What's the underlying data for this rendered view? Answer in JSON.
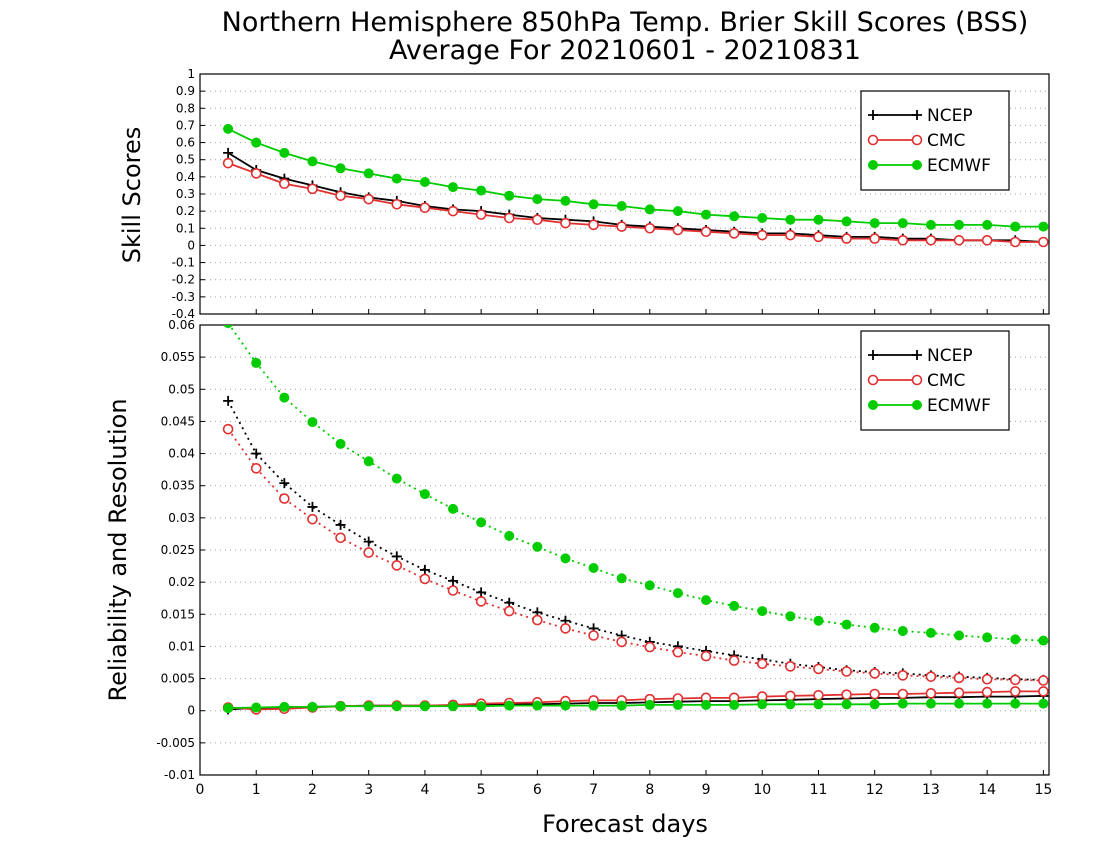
{
  "chart_data": [
    {
      "type": "line",
      "panel": "top",
      "title": "Northern Hemisphere 850hPa Temp. Brier Skill Scores (BSS)",
      "subtitle": "Average For 20210601 - 20210831",
      "ylabel": "Skill Scores",
      "xlabel": "",
      "xlim": [
        0,
        15.1
      ],
      "ylim": [
        -0.4,
        1.0
      ],
      "yticks": [
        -0.4,
        -0.3,
        -0.2,
        -0.1,
        0,
        0.1,
        0.2,
        0.3,
        0.4,
        0.5,
        0.6,
        0.7,
        0.8,
        0.9,
        1
      ],
      "ytick_labels": [
        "-0.4",
        "-0.3",
        "-0.2",
        "-0.1",
        "0",
        "0.1",
        "0.2",
        "0.3",
        "0.4",
        "0.5",
        "0.6",
        "0.7",
        "0.8",
        "0.9",
        "1"
      ],
      "grid": true,
      "legend": "top-right",
      "x": [
        0.5,
        1,
        1.5,
        2,
        2.5,
        3,
        3.5,
        4,
        4.5,
        5,
        5.5,
        6,
        6.5,
        7,
        7.5,
        8,
        8.5,
        9,
        9.5,
        10,
        10.5,
        11,
        11.5,
        12,
        12.5,
        13,
        13.5,
        14,
        14.5,
        15
      ],
      "series": [
        {
          "name": "NCEP",
          "color": "#000000",
          "marker": "plus",
          "line": "solid",
          "values": [
            0.54,
            0.44,
            0.39,
            0.35,
            0.31,
            0.28,
            0.26,
            0.23,
            0.21,
            0.2,
            0.18,
            0.16,
            0.15,
            0.14,
            0.12,
            0.11,
            0.1,
            0.09,
            0.08,
            0.07,
            0.07,
            0.06,
            0.05,
            0.05,
            0.04,
            0.04,
            0.03,
            0.03,
            0.03,
            0.02
          ]
        },
        {
          "name": "CMC",
          "color": "#e03030",
          "marker": "open-circle",
          "line": "solid",
          "values": [
            0.48,
            0.42,
            0.36,
            0.33,
            0.29,
            0.27,
            0.24,
            0.22,
            0.2,
            0.18,
            0.16,
            0.15,
            0.13,
            0.12,
            0.11,
            0.1,
            0.09,
            0.08,
            0.07,
            0.06,
            0.06,
            0.05,
            0.04,
            0.04,
            0.03,
            0.03,
            0.03,
            0.03,
            0.02,
            0.02
          ]
        },
        {
          "name": "ECMWF",
          "color": "#00cc00",
          "marker": "filled-circle",
          "line": "solid",
          "values": [
            0.68,
            0.6,
            0.54,
            0.49,
            0.45,
            0.42,
            0.39,
            0.37,
            0.34,
            0.32,
            0.29,
            0.27,
            0.26,
            0.24,
            0.23,
            0.21,
            0.2,
            0.18,
            0.17,
            0.16,
            0.15,
            0.15,
            0.14,
            0.13,
            0.13,
            0.12,
            0.12,
            0.12,
            0.11,
            0.11
          ]
        }
      ]
    },
    {
      "type": "line",
      "panel": "bottom",
      "ylabel": "Reliability and Resolution",
      "xlabel": "Forecast days",
      "xlim": [
        0,
        15.1
      ],
      "ylim": [
        -0.01,
        0.06
      ],
      "xticks": [
        0,
        1,
        2,
        3,
        4,
        5,
        6,
        7,
        8,
        9,
        10,
        11,
        12,
        13,
        14,
        15
      ],
      "xtick_labels": [
        "0",
        "1",
        "2",
        "3",
        "4",
        "5",
        "6",
        "7",
        "8",
        "9",
        "10",
        "11",
        "12",
        "13",
        "14",
        "15"
      ],
      "yticks": [
        -0.01,
        -0.005,
        0,
        0.005,
        0.01,
        0.015,
        0.02,
        0.025,
        0.03,
        0.035,
        0.04,
        0.045,
        0.05,
        0.055,
        0.06
      ],
      "ytick_labels": [
        "-0.01",
        "-0.005",
        "0",
        "0.005",
        "0.01",
        "0.015",
        "0.02",
        "0.025",
        "0.03",
        "0.035",
        "0.04",
        "0.045",
        "0.05",
        "0.055",
        "0.06"
      ],
      "grid": true,
      "legend": "top-right",
      "x": [
        0.5,
        1,
        1.5,
        2,
        2.5,
        3,
        3.5,
        4,
        4.5,
        5,
        5.5,
        6,
        6.5,
        7,
        7.5,
        8,
        8.5,
        9,
        9.5,
        10,
        10.5,
        11,
        11.5,
        12,
        12.5,
        13,
        13.5,
        14,
        14.5,
        15
      ],
      "series": [
        {
          "name": "NCEP",
          "role": "resolution",
          "color": "#000000",
          "marker": "plus",
          "line": "dotted",
          "values": [
            0.0482,
            0.04,
            0.0354,
            0.0317,
            0.0289,
            0.0263,
            0.024,
            0.0219,
            0.0202,
            0.0184,
            0.0168,
            0.0153,
            0.014,
            0.0128,
            0.0117,
            0.0107,
            0.01,
            0.0093,
            0.0086,
            0.008,
            0.0073,
            0.0068,
            0.0063,
            0.006,
            0.0058,
            0.0055,
            0.0053,
            0.0051,
            0.0049,
            0.0048
          ]
        },
        {
          "name": "CMC",
          "role": "resolution",
          "color": "#e03030",
          "marker": "open-circle",
          "line": "dotted",
          "values": [
            0.0438,
            0.0377,
            0.033,
            0.0298,
            0.0269,
            0.0246,
            0.0226,
            0.0205,
            0.0187,
            0.017,
            0.0155,
            0.0141,
            0.0128,
            0.0117,
            0.0107,
            0.0099,
            0.0091,
            0.0085,
            0.0078,
            0.0073,
            0.0069,
            0.0065,
            0.0061,
            0.0058,
            0.0055,
            0.0053,
            0.0051,
            0.0049,
            0.0048,
            0.0047
          ]
        },
        {
          "name": "ECMWF",
          "role": "resolution",
          "color": "#00cc00",
          "marker": "filled-circle",
          "line": "dotted",
          "values": [
            0.0603,
            0.0541,
            0.0487,
            0.0449,
            0.0415,
            0.0388,
            0.0361,
            0.0337,
            0.0314,
            0.0293,
            0.0272,
            0.0255,
            0.0237,
            0.0222,
            0.0206,
            0.0195,
            0.0183,
            0.0172,
            0.0163,
            0.0155,
            0.0147,
            0.014,
            0.0134,
            0.0129,
            0.0124,
            0.0121,
            0.0117,
            0.0114,
            0.0111,
            0.0109
          ]
        },
        {
          "name": "NCEP",
          "role": "reliability",
          "color": "#000000",
          "marker": "plus",
          "line": "solid",
          "values": [
            0.0002,
            0.0004,
            0.0005,
            0.0006,
            0.0007,
            0.0008,
            0.0008,
            0.0008,
            0.0008,
            0.0009,
            0.001,
            0.001,
            0.0011,
            0.0012,
            0.0012,
            0.0013,
            0.0014,
            0.0015,
            0.0015,
            0.0016,
            0.0017,
            0.0018,
            0.0019,
            0.002,
            0.002,
            0.0021,
            0.0021,
            0.0022,
            0.0022,
            0.0023
          ]
        },
        {
          "name": "CMC",
          "role": "reliability",
          "color": "#e03030",
          "marker": "open-circle",
          "line": "solid",
          "values": [
            0.0005,
            0.0002,
            0.0003,
            0.0005,
            0.0007,
            0.0008,
            0.0008,
            0.0008,
            0.0009,
            0.0011,
            0.0012,
            0.0013,
            0.0015,
            0.0016,
            0.0016,
            0.0018,
            0.0019,
            0.002,
            0.002,
            0.0022,
            0.0023,
            0.0024,
            0.0025,
            0.0026,
            0.0026,
            0.0027,
            0.0028,
            0.0029,
            0.003,
            0.003
          ]
        },
        {
          "name": "ECMWF",
          "role": "reliability",
          "color": "#00cc00",
          "marker": "filled-circle",
          "line": "solid",
          "values": [
            0.0004,
            0.0005,
            0.0006,
            0.0006,
            0.0007,
            0.0007,
            0.0007,
            0.0007,
            0.0007,
            0.0007,
            0.0008,
            0.0008,
            0.0008,
            0.0008,
            0.0008,
            0.0009,
            0.0009,
            0.0009,
            0.0009,
            0.001,
            0.001,
            0.001,
            0.001,
            0.001,
            0.0011,
            0.0011,
            0.0011,
            0.0011,
            0.0011,
            0.0011
          ]
        }
      ]
    }
  ],
  "legend": {
    "entries": [
      {
        "label": "NCEP",
        "color": "#000000",
        "marker": "plus"
      },
      {
        "label": "CMC",
        "color": "#e03030",
        "marker": "open-circle"
      },
      {
        "label": "ECMWF",
        "color": "#00cc00",
        "marker": "filled-circle"
      }
    ]
  }
}
